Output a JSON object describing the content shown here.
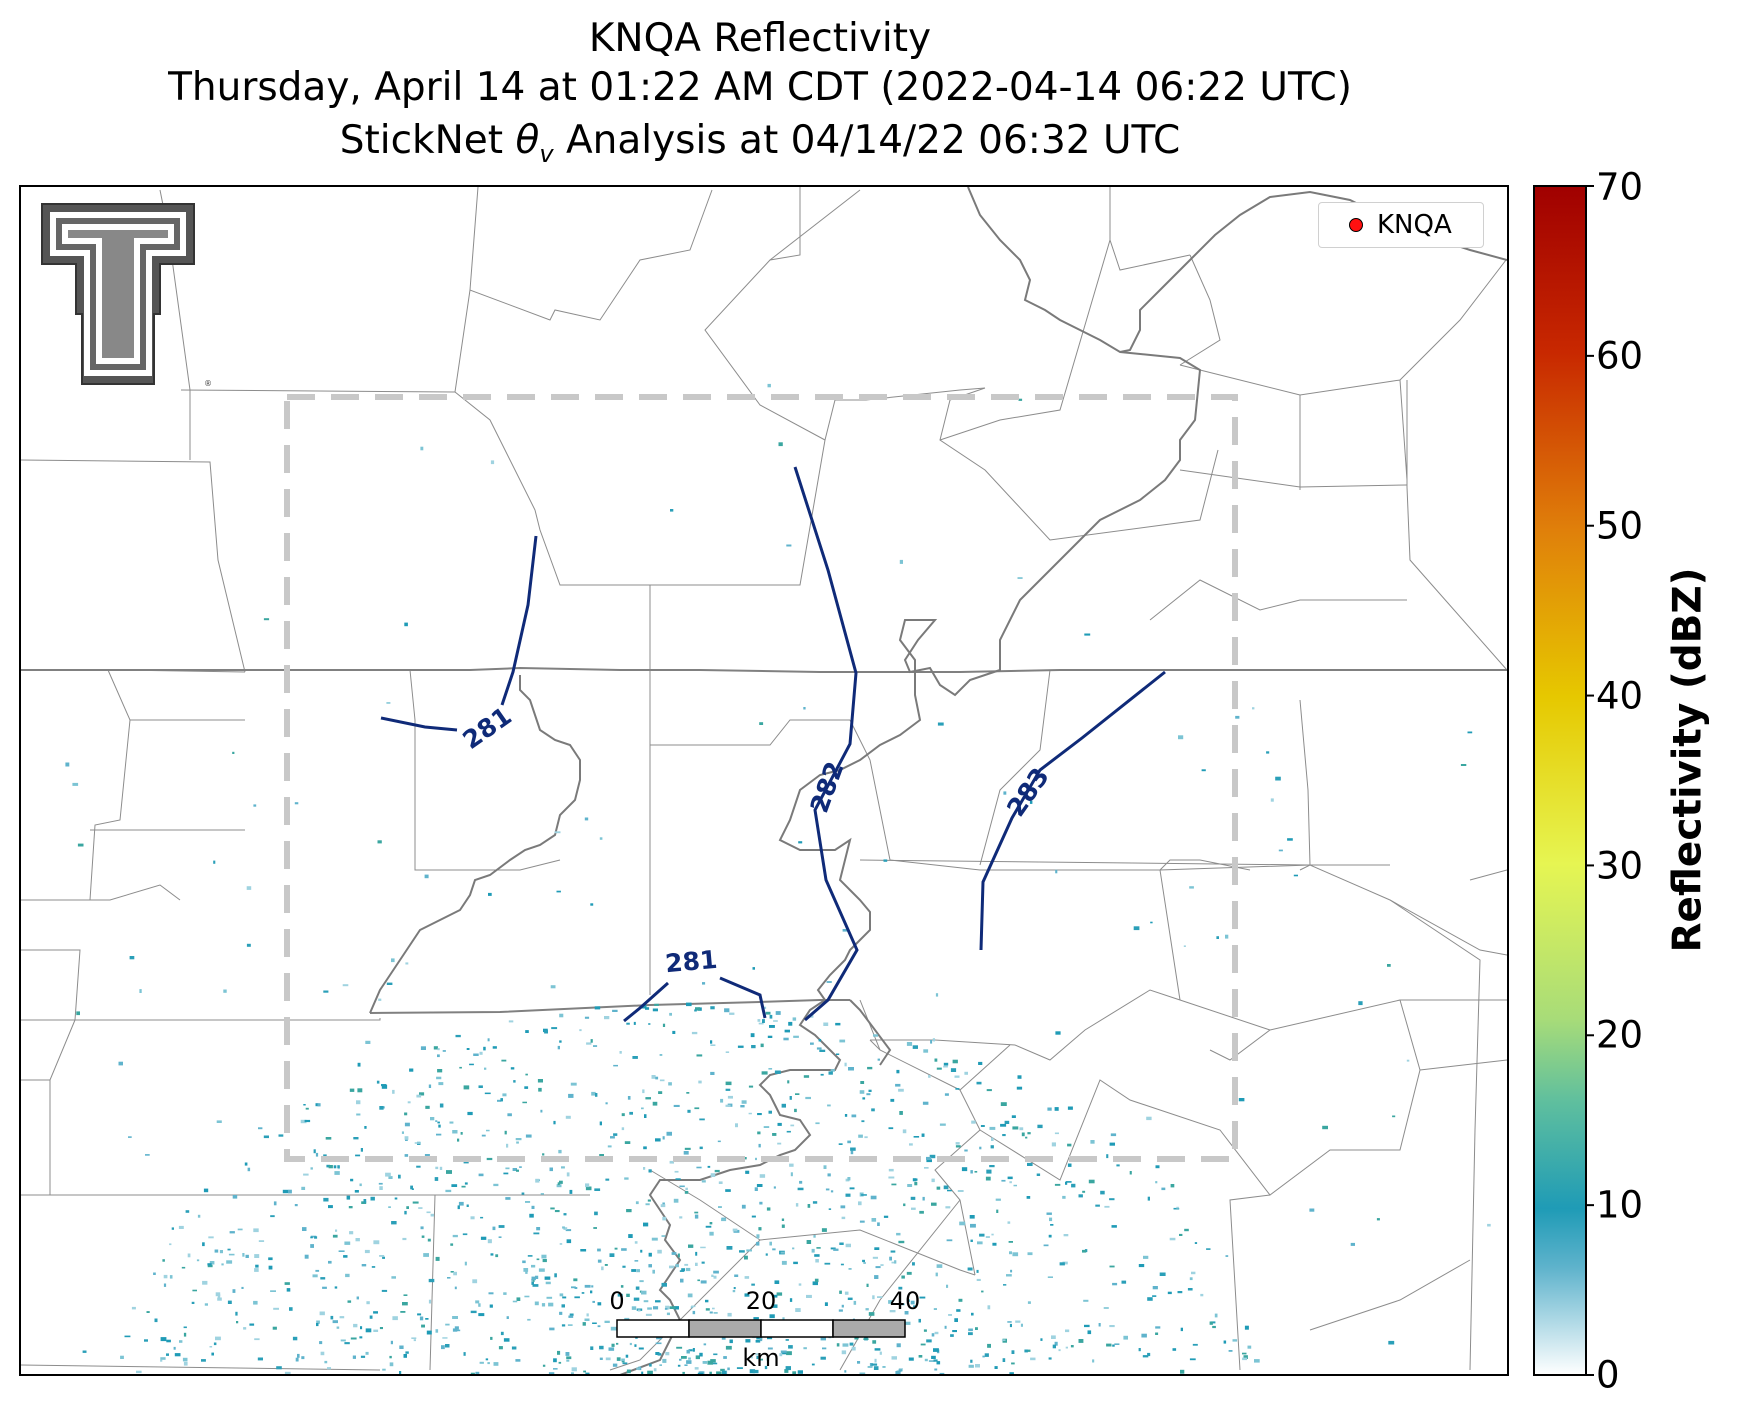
{
  "title": {
    "line1": "KNQA Reflectivity",
    "line2": "Thursday, April 14 at 01:22 AM CDT (2022-04-14 06:22 UTC)",
    "line3_prefix": "StickNet ",
    "line3_symbol": "θ",
    "line3_sub": "v",
    "line3_suffix": " Analysis at 04/14/22 06:32 UTC"
  },
  "legend": {
    "label": "KNQA",
    "marker_color": "#ff1010"
  },
  "colorbar": {
    "label": "Reflectivity (dBZ)",
    "ticks": [
      "0",
      "10",
      "20",
      "30",
      "40",
      "50",
      "60",
      "70"
    ],
    "range": [
      0,
      70
    ],
    "colors": [
      "#ffffff",
      "#1f9bb6",
      "#5fbf9e",
      "#a8dc78",
      "#e6f552",
      "#e6c800",
      "#e0800a",
      "#c82800",
      "#a00000"
    ]
  },
  "contours": [
    {
      "label": "281"
    },
    {
      "label": "282"
    },
    {
      "label": "283"
    },
    {
      "label": "281"
    }
  ],
  "scale_bar": {
    "labels": [
      "0",
      "20",
      "40"
    ],
    "unit": "km"
  },
  "logo": {
    "name": "Texas Tech Double T",
    "text": "T"
  }
}
